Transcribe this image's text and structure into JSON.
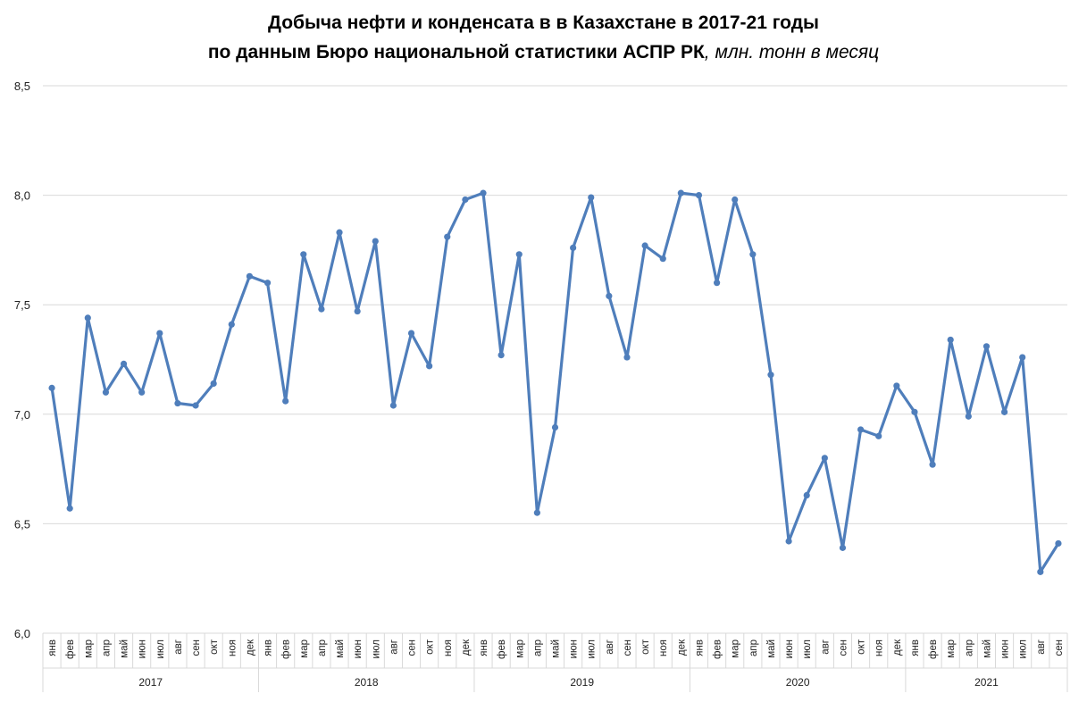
{
  "chart_data": {
    "type": "line",
    "title": "Добыча нефти и конденсата в в Казахстане в 2017-21 годы",
    "subtitle_main": "по данным Бюро национальной статистики АСПР РК",
    "subtitle_unit": ", млн. тонн в месяц",
    "ylim": [
      6.0,
      8.5
    ],
    "yticks": [
      "6,0",
      "6,5",
      "7,0",
      "7,5",
      "8,0",
      "8,5"
    ],
    "yticks_values": [
      6.0,
      6.5,
      7.0,
      7.5,
      8.0,
      8.5
    ],
    "grid": true,
    "legend": "none",
    "line_color": "#4F7EBB",
    "grid_color": "#d9d9d9",
    "years": [
      "2017",
      "2018",
      "2019",
      "2020",
      "2021"
    ],
    "months": [
      "янв",
      "фев",
      "мар",
      "апр",
      "май",
      "июн",
      "июл",
      "авг",
      "сен",
      "окт",
      "ноя",
      "дек"
    ],
    "x": [
      "янв",
      "фев",
      "мар",
      "апр",
      "май",
      "июн",
      "июл",
      "авг",
      "сен",
      "окт",
      "ноя",
      "дек",
      "янв",
      "фев",
      "мар",
      "апр",
      "май",
      "июн",
      "июл",
      "авг",
      "сен",
      "окт",
      "ноя",
      "дек",
      "янв",
      "фев",
      "мар",
      "апр",
      "май",
      "июн",
      "июл",
      "авг",
      "сен",
      "окт",
      "ноя",
      "дек",
      "янв",
      "фев",
      "мар",
      "апр",
      "май",
      "июн",
      "июл",
      "авг",
      "сен",
      "окт",
      "ноя",
      "дек",
      "янв",
      "фев",
      "мар",
      "апр",
      "май",
      "июн",
      "июл",
      "авг",
      "сен"
    ],
    "values": [
      7.12,
      6.57,
      7.44,
      7.1,
      7.23,
      7.1,
      7.37,
      7.05,
      7.04,
      7.14,
      7.41,
      7.63,
      7.6,
      7.06,
      7.73,
      7.48,
      7.83,
      7.47,
      7.79,
      7.04,
      7.37,
      7.22,
      7.81,
      7.98,
      8.01,
      7.27,
      7.73,
      6.55,
      6.94,
      7.76,
      7.99,
      7.54,
      7.26,
      7.77,
      7.71,
      8.01,
      8.0,
      7.6,
      7.98,
      7.73,
      7.18,
      6.42,
      6.63,
      6.8,
      6.39,
      6.93,
      6.9,
      7.13,
      7.01,
      6.77,
      7.34,
      6.99,
      7.31,
      7.01,
      7.26,
      6.28,
      6.41
    ]
  }
}
